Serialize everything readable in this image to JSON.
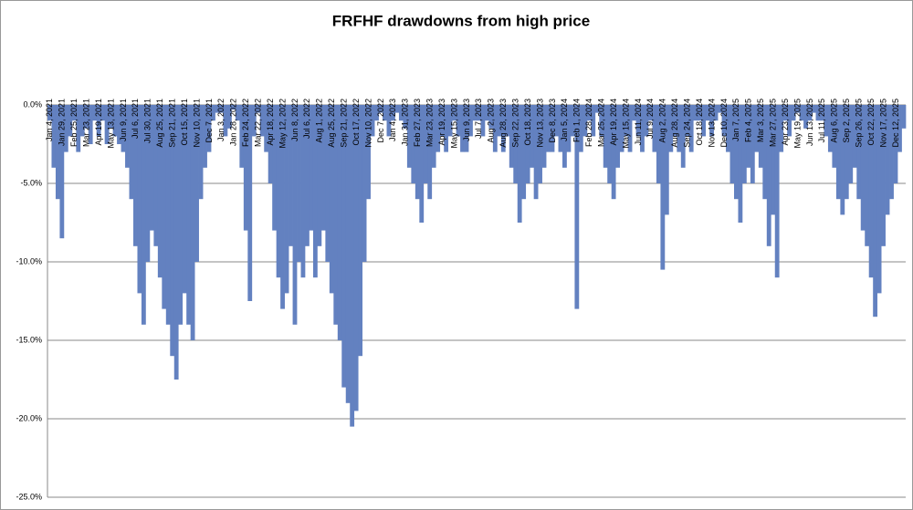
{
  "chart_data": {
    "type": "bar",
    "title": "FRFHF drawdowns from high price",
    "categories": [
      "Jan 4, 2021",
      null,
      null,
      "Jan 29, 2021",
      null,
      null,
      "Feb 25, 2021",
      null,
      null,
      "Mar 23, 2021",
      null,
      null,
      "Apr 19, 2021",
      null,
      null,
      "May 13, 2021",
      null,
      null,
      "Jun 9, 2021",
      null,
      null,
      "Jul 6, 2021",
      null,
      null,
      "Jul 30, 2021",
      null,
      null,
      "Aug 25, 2021",
      null,
      null,
      "Sep 21, 2021",
      null,
      null,
      "Oct 15, 2021",
      null,
      null,
      "Nov 10, 2021",
      null,
      null,
      "Dec 7, 2021",
      null,
      null,
      "Jan 3, 2022",
      null,
      null,
      "Jan 28, 2022",
      null,
      null,
      "Feb 24, 2022",
      null,
      null,
      "Mar 22, 2022",
      null,
      null,
      "Apr 18, 2022",
      null,
      null,
      "May 12, 2022",
      null,
      null,
      "Jun 8, 2022",
      null,
      null,
      "Jul 6, 2022",
      null,
      null,
      "Aug 1, 2022",
      null,
      null,
      "Aug 25, 2022",
      null,
      null,
      "Sep 21, 2022",
      null,
      null,
      "Oct 17, 2022",
      null,
      null,
      "Nov 10, 2022",
      null,
      null,
      "Dec 7, 2022",
      null,
      null,
      "Jan 4, 2023",
      null,
      null,
      "Jan 31, 2023",
      null,
      null,
      "Feb 27, 2023",
      null,
      null,
      "Mar 23, 2023",
      null,
      null,
      "Apr 19, 2023",
      null,
      null,
      "May 15, 2023",
      null,
      null,
      "Jun 9, 2023",
      null,
      null,
      "Jul 7, 2023",
      null,
      null,
      "Aug 2, 2023",
      null,
      null,
      "Aug 28, 2023",
      null,
      null,
      "Sep 22, 2023",
      null,
      null,
      "Oct 18, 2023",
      null,
      null,
      "Nov 13, 2023",
      null,
      null,
      "Dec 8, 2023",
      null,
      null,
      "Jan 5, 2024",
      null,
      null,
      "Feb 1, 2024",
      null,
      null,
      "Feb 28, 2024",
      null,
      null,
      "Mar 25, 2024",
      null,
      null,
      "Apr 19, 2024",
      null,
      null,
      "May 15, 2024",
      null,
      null,
      "Jun 11, 2024",
      null,
      null,
      "Jul 9, 2024",
      null,
      null,
      "Aug 2, 2024",
      null,
      null,
      "Aug 28, 2024",
      null,
      null,
      "Sep 24, 2024",
      null,
      null,
      "Oct 18, 2024",
      null,
      null,
      "Nov 13, 2024",
      null,
      null,
      "Dec 10, 2024",
      null,
      null,
      "Jan 7, 2025",
      null,
      null,
      "Feb 4, 2025",
      null,
      null,
      "Mar 3, 2025",
      null,
      null,
      "Mar 27, 2025",
      null,
      null,
      "Apr 23, 2025",
      null,
      null,
      "May 19, 2025",
      null,
      null,
      "Jun 13, 2025",
      null,
      null,
      "Jul 11, 2025",
      null,
      null,
      "Aug 6, 2025",
      null,
      null,
      "Sep 2, 2025",
      null,
      null,
      "Sep 26, 2025",
      null,
      null,
      "Oct 22, 2025",
      null,
      null,
      "Nov 17, 2025",
      null,
      null,
      "Dec 12, 2025",
      null,
      null
    ],
    "values": [
      -1,
      -4,
      -6,
      -8.5,
      -3,
      -2,
      -1,
      -3,
      -2,
      -1.5,
      -2.5,
      -1,
      -2,
      -1,
      -2.5,
      -1.5,
      -2,
      -2.5,
      -3,
      -4,
      -6,
      -9,
      -12,
      -14,
      -10,
      -8,
      -9,
      -11,
      -13,
      -14,
      -16,
      -17.5,
      -14,
      -12,
      -14,
      -15,
      -10,
      -6,
      -4,
      -3,
      -1,
      -0.5,
      -0.5,
      -2,
      -1.5,
      -0.3,
      -1,
      -4,
      -8,
      -12.5,
      -2,
      -0.5,
      -2,
      -3,
      -5,
      -8,
      -11,
      -13,
      -12,
      -9,
      -14,
      -10,
      -11,
      -9,
      -8,
      -11,
      -9,
      -8,
      -10,
      -12,
      -14,
      -15,
      -18,
      -19,
      -20.5,
      -19.5,
      -16,
      -10,
      -6,
      -2,
      -1,
      -0.5,
      -1,
      -2,
      -1,
      -0.5,
      -1,
      -1.5,
      -4,
      -5,
      -6,
      -7.5,
      -5,
      -6,
      -4,
      -3,
      -2,
      -3,
      -2,
      -1,
      -2,
      -3,
      -3,
      -2,
      -1,
      -1,
      -2,
      -1,
      -1.5,
      -3,
      -2,
      -3,
      -2,
      -4,
      -5,
      -7.5,
      -6,
      -5,
      -4,
      -6,
      -5,
      -4,
      -3,
      -3,
      -2,
      -3,
      -4,
      -3,
      -2,
      -13,
      -3,
      -2,
      -1,
      -2,
      -0.5,
      -2,
      -4,
      -5,
      -6,
      -4,
      -3,
      -2,
      -3,
      -1,
      -2,
      -3,
      -2,
      -1,
      -3,
      -5,
      -10.5,
      -7,
      -3,
      -2,
      -3,
      -4,
      -2,
      -3,
      -1,
      -1,
      -2,
      -1,
      -2,
      -1,
      -0.5,
      -2,
      -3,
      -5,
      -6,
      -7.5,
      -5,
      -4,
      -5,
      -3,
      -4,
      -6,
      -9,
      -7,
      -11,
      -3,
      -1,
      -2,
      -1,
      -0.5,
      -1,
      -1.5,
      -1,
      -0.5,
      -1,
      -1,
      -2,
      -3,
      -4,
      -6,
      -7,
      -6,
      -5,
      -4,
      -6,
      -8,
      -9,
      -11,
      -13.5,
      -12,
      -9,
      -7,
      -6,
      -5,
      -3,
      -1.5
    ],
    "color": "#6381c0",
    "ylim": [
      -25,
      0
    ],
    "yticks": [
      {
        "value": 0,
        "label": "0.0%"
      },
      {
        "value": -5,
        "label": "-5.0%"
      },
      {
        "value": -10,
        "label": "-10.0%"
      },
      {
        "value": -15,
        "label": "-15.0%"
      },
      {
        "value": -20,
        "label": "-20.0%"
      },
      {
        "value": -25,
        "label": "-25.0%"
      }
    ],
    "grid": true
  }
}
